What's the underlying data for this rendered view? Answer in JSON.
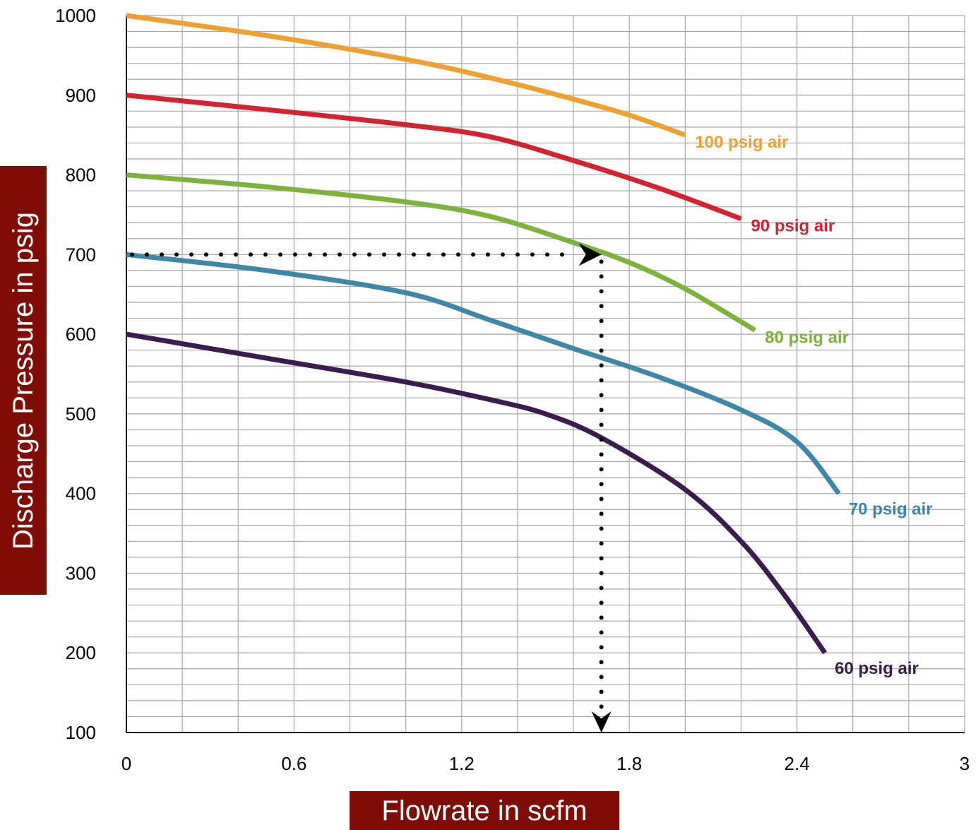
{
  "chart_data": {
    "type": "line",
    "xlabel": "Flowrate in scfm",
    "ylabel": "Discharge Pressure in psig",
    "xlim": [
      0,
      3
    ],
    "ylim": [
      100,
      1000
    ],
    "x_ticks": [
      "0",
      "0.6",
      "1.2",
      "1.8",
      "2.4",
      "3"
    ],
    "y_ticks": [
      "100",
      "200",
      "300",
      "400",
      "500",
      "600",
      "700",
      "800",
      "900",
      "1000"
    ],
    "grid": true,
    "series": [
      {
        "name": "100 psig air",
        "color": "#f0a030",
        "x": [
          0,
          0.5,
          1.0,
          1.3,
          1.6,
          1.8,
          2.0
        ],
        "y": [
          1000,
          975,
          945,
          922,
          895,
          875,
          850
        ]
      },
      {
        "name": "90 psig air",
        "color": "#d42230",
        "x": [
          0,
          0.5,
          1.0,
          1.3,
          1.6,
          1.9,
          2.2
        ],
        "y": [
          900,
          882,
          863,
          848,
          818,
          784,
          745
        ]
      },
      {
        "name": "80 psig air",
        "color": "#7db23d",
        "x": [
          0,
          0.5,
          1.0,
          1.3,
          1.6,
          1.8,
          2.0,
          2.25
        ],
        "y": [
          800,
          785,
          766,
          748,
          715,
          690,
          657,
          605
        ]
      },
      {
        "name": "70 psig air",
        "color": "#3e87a8",
        "x": [
          0,
          0.5,
          1.0,
          1.3,
          1.6,
          1.9,
          2.2,
          2.4,
          2.55
        ],
        "y": [
          700,
          680,
          652,
          618,
          582,
          547,
          505,
          465,
          400
        ]
      },
      {
        "name": "60 psig air",
        "color": "#3a1c4e",
        "x": [
          0,
          0.5,
          1.0,
          1.3,
          1.5,
          1.7,
          2.0,
          2.2,
          2.35,
          2.5
        ],
        "y": [
          600,
          570,
          540,
          518,
          500,
          470,
          405,
          340,
          275,
          200
        ]
      }
    ],
    "guide": {
      "color": "#000000",
      "horizontal": {
        "x": [
          0,
          1.7
        ],
        "y": 700
      },
      "vertical": {
        "x": 1.7,
        "y": [
          700,
          100
        ]
      }
    }
  }
}
